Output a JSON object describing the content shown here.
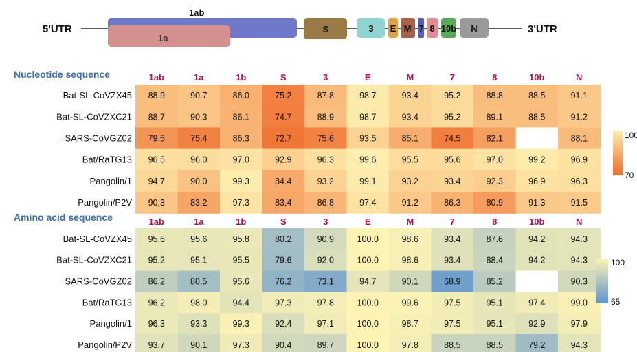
{
  "genome": {
    "utr5": "5'UTR",
    "utr3": "3'UTR",
    "genes": [
      {
        "label": "1ab",
        "color": "#6f78c9"
      },
      {
        "label": "1a",
        "color": "#d48f8f"
      },
      {
        "label": "S",
        "color": "#9b7b45"
      },
      {
        "label": "3",
        "color": "#8fd3d3"
      },
      {
        "label": "E",
        "color": "#e0a247"
      },
      {
        "label": "M",
        "color": "#a8614a"
      },
      {
        "label": "7",
        "color": "#5c5cb0"
      },
      {
        "label": "8",
        "color": "#e68a95"
      },
      {
        "label": "10b",
        "color": "#5aa85a"
      },
      {
        "label": "N",
        "color": "#9a9a9a"
      }
    ]
  },
  "chart_data": [
    {
      "type": "heatmap",
      "title": "Nucleotide sequence",
      "columns": [
        "1ab",
        "1a",
        "1b",
        "S",
        "3",
        "E",
        "M",
        "7",
        "8",
        "10b",
        "N"
      ],
      "rows": [
        "Bat-SL-CoVZX45",
        "Bat-SL-CoVZXC21",
        "SARS-CoVGZ02",
        "Bat/RaTG13",
        "Pangolin/1",
        "Pangolin/P2V"
      ],
      "values": [
        [
          88.9,
          90.7,
          86.0,
          75.2,
          87.8,
          98.7,
          93.4,
          95.2,
          88.8,
          88.5,
          91.1
        ],
        [
          88.7,
          90.3,
          86.1,
          74.7,
          88.9,
          98.7,
          93.4,
          95.2,
          89.1,
          88.5,
          91.2
        ],
        [
          79.5,
          75.4,
          86.3,
          72.7,
          75.6,
          93.5,
          85.1,
          74.5,
          82.1,
          null,
          88.1
        ],
        [
          96.5,
          96.0,
          97.0,
          92.9,
          96.3,
          99.6,
          95.5,
          95.6,
          97.0,
          99.2,
          96.9
        ],
        [
          94.7,
          90.0,
          99.3,
          84.4,
          93.2,
          99.1,
          93.2,
          93.4,
          92.3,
          96.9,
          96.3
        ],
        [
          90.3,
          83.2,
          97.3,
          83.4,
          86.8,
          97.4,
          91.2,
          86.3,
          80.9,
          91.3,
          91.5
        ]
      ],
      "value_labels": [
        [
          "88.9",
          "90.7",
          "86.0",
          "75.2",
          "87.8",
          "98.7",
          "93.4",
          "95.2",
          "88.8",
          "88.5",
          "91.1"
        ],
        [
          "88.7",
          "90.3",
          "86.1",
          "74.7",
          "88.9",
          "98.7",
          "93.4",
          "95.2",
          "89.1",
          "88.5",
          "91.2"
        ],
        [
          "79.5",
          "75.4",
          "86.3",
          "72.7",
          "75.6",
          "93.5",
          "85.1",
          "74.5",
          "82.1",
          "",
          "88.1"
        ],
        [
          "96.5",
          "96.0",
          "97.0",
          "92.9",
          "96.3",
          "99.6",
          "95.5",
          "95.6",
          "97.0",
          "99.2",
          "96.9"
        ],
        [
          "94.7",
          "90.0",
          "99.3",
          "84.4",
          "93.2",
          "99.1",
          "93.2",
          "93.4",
          "92.3",
          "96.9",
          "96.3"
        ],
        [
          "90.3",
          "83.2",
          "97.3",
          "83.4",
          "86.8",
          "97.4",
          "91.2",
          "86.3",
          "80.9",
          "91.3",
          "91.5"
        ]
      ],
      "scale": {
        "min": 70,
        "max": 100,
        "min_label": "70",
        "max_label": "100",
        "color_low": "#ef6a2a",
        "color_high": "#fff0b0"
      },
      "legend": "right"
    },
    {
      "type": "heatmap",
      "title": "Amino acid sequence",
      "columns": [
        "1ab",
        "1a",
        "1b",
        "S",
        "3",
        "E",
        "M",
        "7",
        "8",
        "10b",
        "N"
      ],
      "rows": [
        "Bat-SL-CoVZX45",
        "Bat-SL-CoVZXC21",
        "SARS-CoVGZ02",
        "Bat/RaTG13",
        "Pangolin/1",
        "Pangolin/P2V"
      ],
      "values": [
        [
          95.6,
          95.6,
          95.8,
          80.2,
          90.9,
          100.0,
          98.6,
          93.4,
          87.6,
          94.2,
          94.3
        ],
        [
          95.2,
          95.1,
          95.5,
          79.6,
          92.0,
          100.0,
          98.6,
          93.4,
          88.4,
          94.2,
          94.3
        ],
        [
          86.2,
          80.5,
          95.6,
          76.2,
          73.1,
          94.7,
          90.1,
          68.9,
          85.2,
          null,
          90.3
        ],
        [
          96.2,
          98.0,
          94.4,
          97.3,
          97.8,
          100.0,
          99.6,
          97.5,
          95.1,
          97.4,
          99.0
        ],
        [
          96.3,
          93.3,
          99.3,
          92.4,
          97.1,
          100.0,
          98.7,
          97.5,
          95.1,
          92.9,
          97.9
        ],
        [
          93.7,
          90.1,
          97.3,
          90.4,
          89.7,
          100.0,
          97.8,
          88.5,
          88.5,
          79.2,
          94.3
        ]
      ],
      "value_labels": [
        [
          "95.6",
          "95.6",
          "95.8",
          "80.2",
          "90.9",
          "100.0",
          "98.6",
          "93.4",
          "87.6",
          "94.2",
          "94.3"
        ],
        [
          "95.2",
          "95.1",
          "95.5",
          "79.6",
          "92.0",
          "100.0",
          "98.6",
          "93.4",
          "88.4",
          "94.2",
          "94.3"
        ],
        [
          "86.2",
          "80.5",
          "95.6",
          "76.2",
          "73.1",
          "94.7",
          "90.1",
          "68.9",
          "85.2",
          "",
          "90.3"
        ],
        [
          "96.2",
          "98.0",
          "94.4",
          "97.3",
          "97.8",
          "100.0",
          "99.6",
          "97.5",
          "95.1",
          "97.4",
          "99.0"
        ],
        [
          "96.3",
          "93.3",
          "99.3",
          "92.4",
          "97.1",
          "100.0",
          "98.7",
          "97.5",
          "95.1",
          "92.9",
          "97.9"
        ],
        [
          "93.7",
          "90.1",
          "97.3",
          "90.4",
          "89.7",
          "100.0",
          "97.8",
          "88.5",
          "88.5",
          "79.2",
          "94.3"
        ]
      ],
      "scale": {
        "min": 65,
        "max": 100,
        "min_label": "65",
        "max_label": "100",
        "color_low": "#5e95cf",
        "color_high": "#fdf3b5"
      },
      "legend": "right"
    }
  ],
  "colors": {
    "title": "#3d6fb0",
    "column_label": "#b0124a",
    "text": "#111111"
  }
}
